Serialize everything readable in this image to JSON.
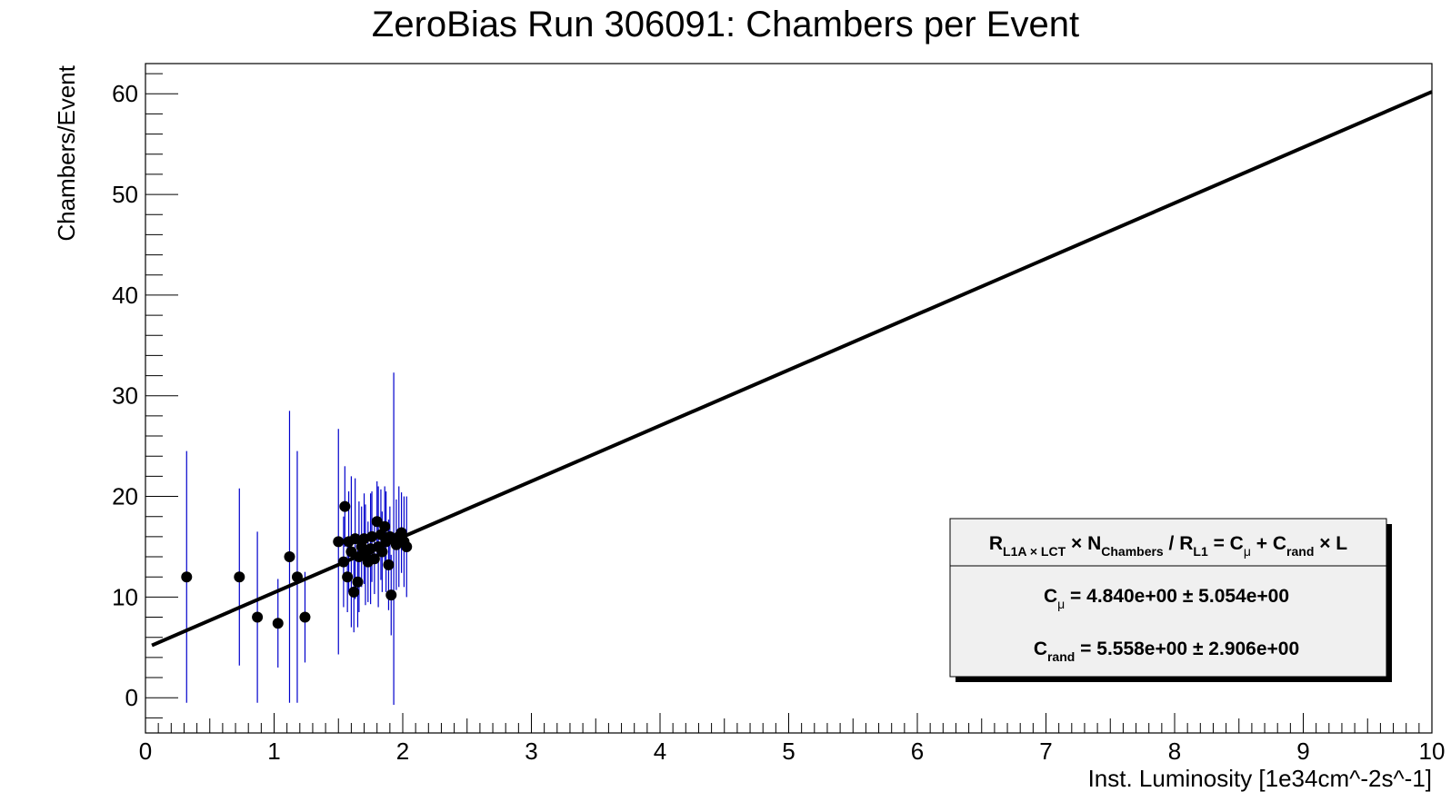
{
  "chart_data": {
    "type": "scatter",
    "title": "ZeroBias Run 306091: Chambers per Event",
    "xlabel": "Inst. Luminosity [1e34cm^-2s^-1]",
    "ylabel": "Chambers/Event",
    "xlim": [
      0,
      10
    ],
    "ylim": [
      -3.5,
      63
    ],
    "x_ticks": [
      "0",
      "1",
      "2",
      "3",
      "4",
      "5",
      "6",
      "7",
      "8",
      "9",
      "10"
    ],
    "y_ticks": [
      "0",
      "10",
      "20",
      "30",
      "40",
      "50",
      "60"
    ],
    "grid": false,
    "legend_position": "bottom-right",
    "colors": {
      "points": "#000000",
      "error_bars": "#0000cc",
      "fit_line": "#000000",
      "legend_bg": "#f0f0f0"
    },
    "points": [
      {
        "x": 0.32,
        "y": 12.0,
        "err": 12.5
      },
      {
        "x": 0.73,
        "y": 12.0,
        "err": 8.8
      },
      {
        "x": 0.87,
        "y": 8.0,
        "err": 8.5
      },
      {
        "x": 1.03,
        "y": 7.4,
        "err": 4.4
      },
      {
        "x": 1.12,
        "y": 14.0,
        "err": 14.5
      },
      {
        "x": 1.18,
        "y": 12.0,
        "err": 12.5
      },
      {
        "x": 1.24,
        "y": 8.0,
        "err": 4.5
      },
      {
        "x": 1.5,
        "y": 15.5,
        "err": 11.2
      },
      {
        "x": 1.54,
        "y": 13.5,
        "err": 4.5
      },
      {
        "x": 1.55,
        "y": 19.0,
        "err": 4.0
      },
      {
        "x": 1.57,
        "y": 12.0,
        "err": 3.5
      },
      {
        "x": 1.58,
        "y": 15.5,
        "err": 5.0
      },
      {
        "x": 1.6,
        "y": 14.5,
        "err": 7.5
      },
      {
        "x": 1.62,
        "y": 10.5,
        "err": 4.0
      },
      {
        "x": 1.63,
        "y": 15.8,
        "err": 6.0
      },
      {
        "x": 1.65,
        "y": 11.5,
        "err": 4.5
      },
      {
        "x": 1.66,
        "y": 14.0,
        "err": 5.5
      },
      {
        "x": 1.68,
        "y": 15.0,
        "err": 4.0
      },
      {
        "x": 1.7,
        "y": 15.8,
        "err": 4.5
      },
      {
        "x": 1.71,
        "y": 14.2,
        "err": 5.0
      },
      {
        "x": 1.73,
        "y": 13.5,
        "err": 4.0
      },
      {
        "x": 1.75,
        "y": 14.8,
        "err": 5.5
      },
      {
        "x": 1.76,
        "y": 16.0,
        "err": 4.5
      },
      {
        "x": 1.78,
        "y": 13.8,
        "err": 3.5
      },
      {
        "x": 1.8,
        "y": 17.5,
        "err": 4.0
      },
      {
        "x": 1.81,
        "y": 15.0,
        "err": 6.0
      },
      {
        "x": 1.83,
        "y": 16.2,
        "err": 4.5
      },
      {
        "x": 1.84,
        "y": 14.5,
        "err": 4.0
      },
      {
        "x": 1.86,
        "y": 17.0,
        "err": 4.0
      },
      {
        "x": 1.87,
        "y": 15.5,
        "err": 5.0
      },
      {
        "x": 1.89,
        "y": 13.2,
        "err": 4.5
      },
      {
        "x": 1.9,
        "y": 16.0,
        "err": 3.0
      },
      {
        "x": 1.91,
        "y": 10.2,
        "err": 4.0
      },
      {
        "x": 1.93,
        "y": 15.8,
        "err": 16.5
      },
      {
        "x": 1.95,
        "y": 15.2,
        "err": 4.5
      },
      {
        "x": 1.97,
        "y": 16.0,
        "err": 5.0
      },
      {
        "x": 1.99,
        "y": 16.4,
        "err": 4.0
      },
      {
        "x": 2.01,
        "y": 15.5,
        "err": 4.5
      },
      {
        "x": 2.03,
        "y": 15.0,
        "err": 5.0
      }
    ],
    "fit_line": {
      "x": [
        0.05,
        10.0
      ],
      "y": [
        5.2,
        60.2
      ]
    },
    "legend": {
      "formula": {
        "R": "R",
        "sub_r_lct": "L1A × LCT",
        "times_n": " × N",
        "sub_n": "Chambers",
        "div_r": " / R",
        "sub_l1": "L1",
        "eq_c": " = C",
        "mu": "μ",
        "plus_c": " + C",
        "rand": "rand",
        "times_l": " × L"
      },
      "c_mu": {
        "label": "C",
        "sub": "μ",
        "value": " = 4.840e+00 ± 5.054e+00"
      },
      "c_rand": {
        "label": "C",
        "sub": "rand",
        "value": " = 5.558e+00 ± 2.906e+00"
      }
    }
  }
}
